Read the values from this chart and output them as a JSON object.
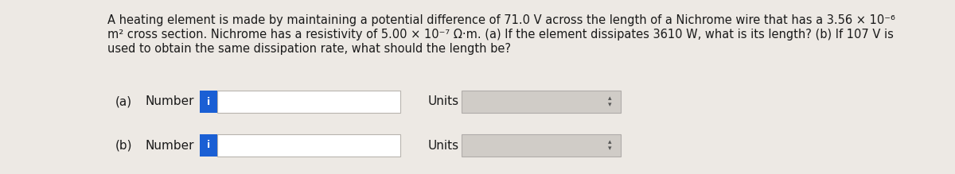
{
  "background_color": "#ede9e4",
  "text_color": "#1a1a1a",
  "row_a_label": "(a)",
  "row_b_label": "(b)",
  "number_label": "Number",
  "units_label": "Units",
  "input_box_color": "#ffffff",
  "input_box_border": "#b8b4ae",
  "blue_btn_color": "#1a5fd4",
  "blue_btn_text": "i",
  "units_box_color": "#d0ccc7",
  "units_box_border": "#b0acaa",
  "arrow_color": "#555555",
  "font_size_text": 10.5,
  "font_size_labels": 11.0,
  "paragraph_lines": [
    "A heating element is made by maintaining a potential difference of 71.0 V across the length of a Nichrome wire that has a 3.56 × 10⁻⁶",
    "m² cross section. Nichrome has a resistivity of 5.00 × 10⁻⁷ Ω·m. (a) If the element dissipates 3610 W, what is its length? (b) If 107 V is",
    "used to obtain the same dissipation rate, what should the length be?"
  ],
  "fig_w": 12.0,
  "fig_h": 2.19,
  "dpi": 100
}
